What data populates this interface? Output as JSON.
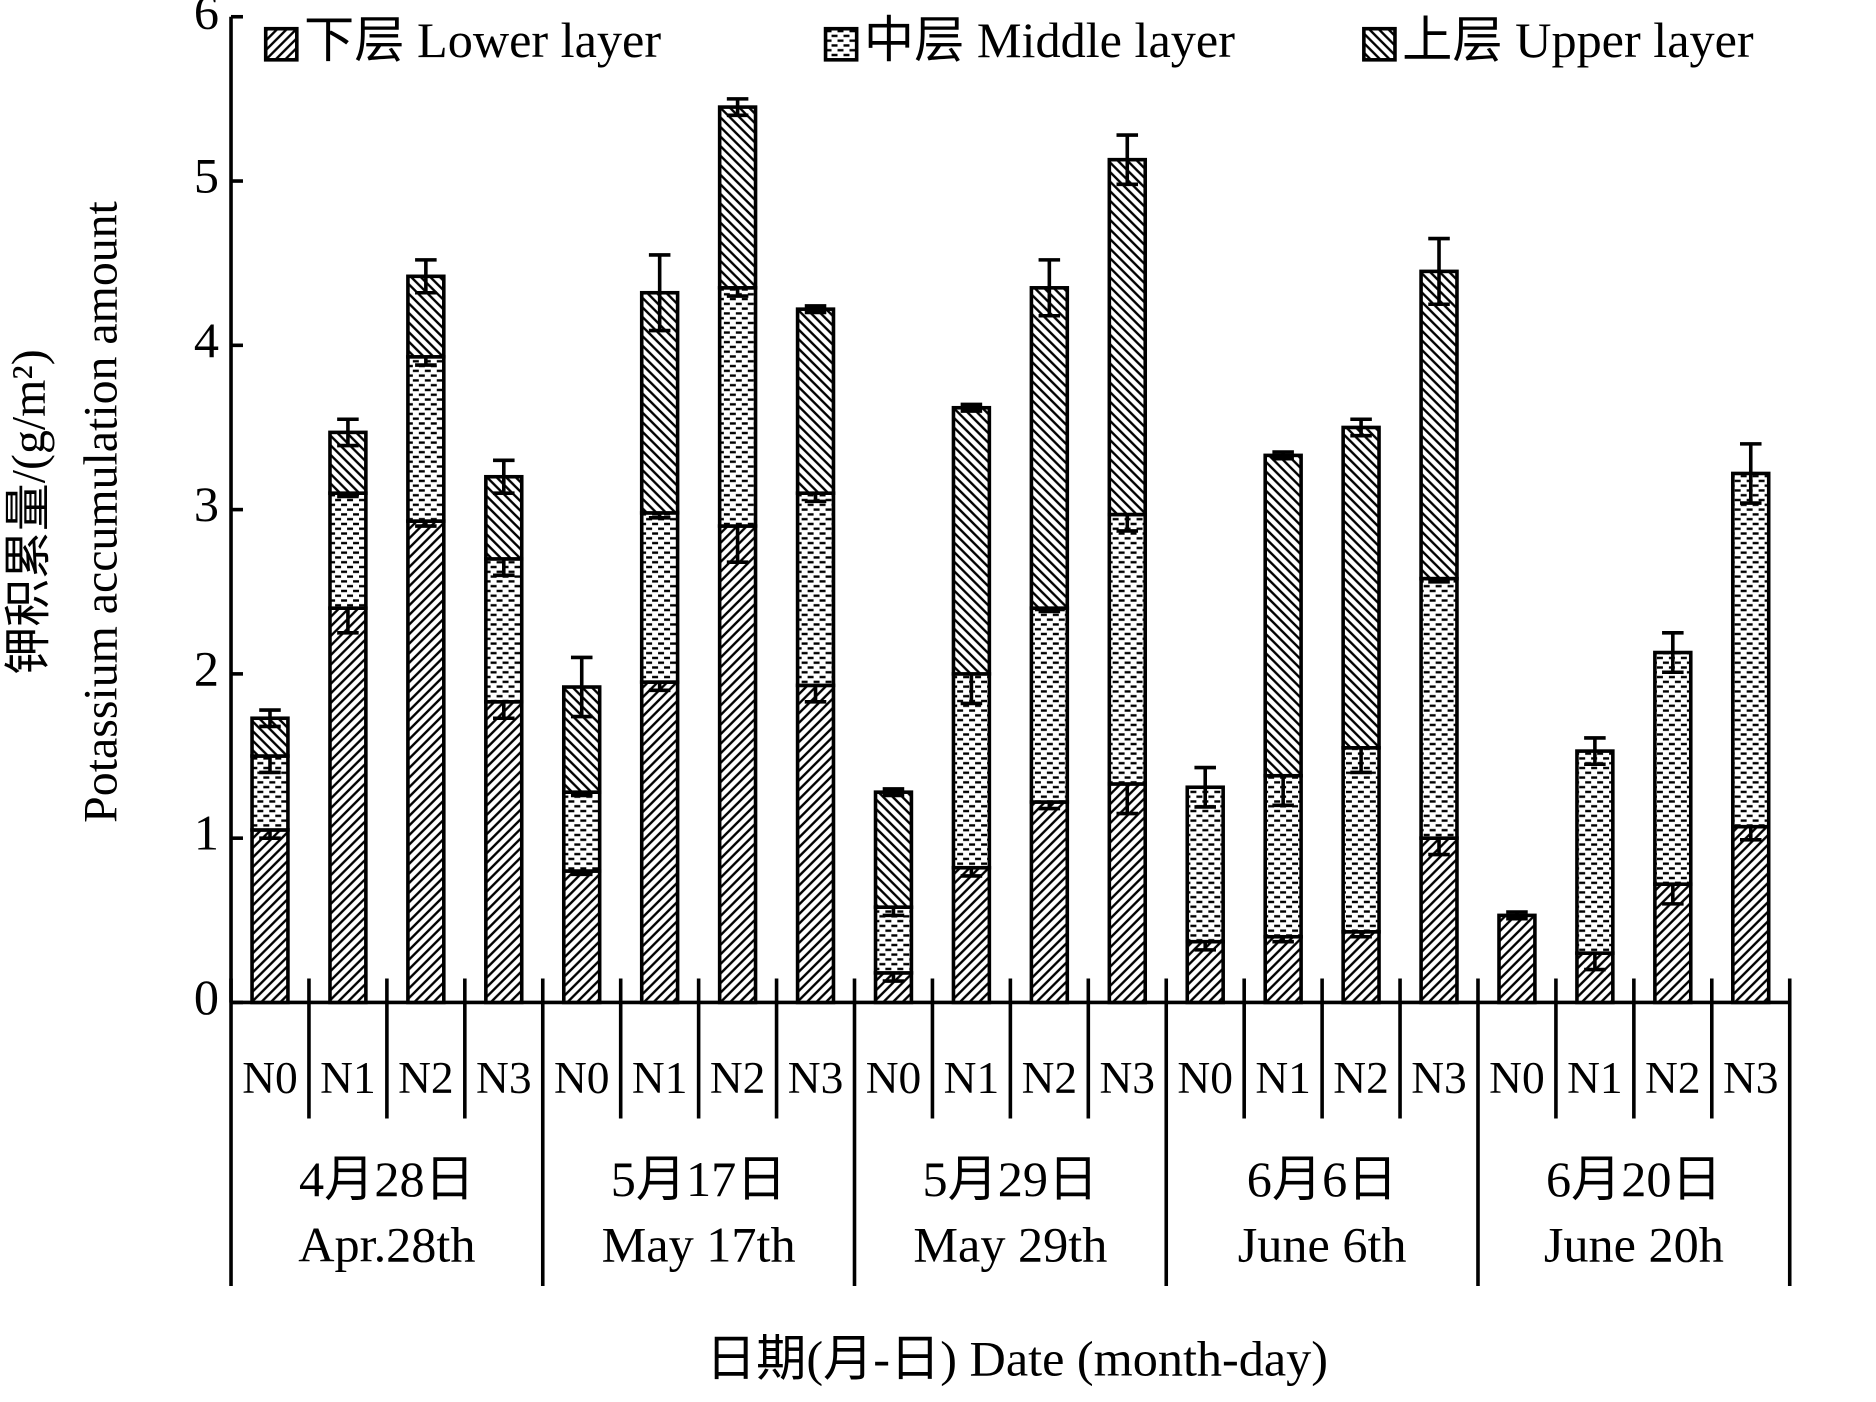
{
  "chart_data": {
    "type": "stacked_bar",
    "y_label": "钾积累量/(g/m²)",
    "y_label_en": "Potassium accumulation amount",
    "x_label": "日期(月-日)  Date (month-day)",
    "categories": [
      "N0",
      "N1",
      "N2",
      "N3",
      "N0",
      "N1",
      "N2",
      "N3",
      "N0",
      "N1",
      "N2",
      "N3",
      "N0",
      "N1",
      "N2",
      "N3",
      "N0",
      "N1",
      "N2",
      "N3"
    ],
    "groups": [
      {
        "label": "4月28日",
        "label_en": "Apr.28th"
      },
      {
        "label": "5月17日",
        "label_en": "May 17th"
      },
      {
        "label": "5月29日",
        "label_en": "May 29th"
      },
      {
        "label": "6月6日",
        "label_en": "June 6th"
      },
      {
        "label": "6月20日",
        "label_en": "June 20h"
      }
    ],
    "series": [
      {
        "name": "下层 Lower layer",
        "color": "#000000",
        "pattern": "forward-hatch",
        "values": [
          1.05,
          2.4,
          2.93,
          1.83,
          0.8,
          1.95,
          2.9,
          1.93,
          0.18,
          0.82,
          1.22,
          1.33,
          0.37,
          0.4,
          0.43,
          1.0,
          0.53,
          0.3,
          0.72,
          1.07
        ],
        "errors": [
          0.05,
          0.15,
          0.03,
          0.1,
          0.02,
          0.05,
          0.22,
          0.1,
          0.05,
          0.05,
          0.04,
          0.18,
          0.05,
          0.03,
          0.03,
          0.1,
          0.02,
          0.1,
          0.12,
          0.08
        ]
      },
      {
        "name": "中层 Middle layer",
        "color": "#000000",
        "pattern": "dots",
        "values": [
          0.45,
          0.7,
          1.0,
          0.87,
          0.48,
          1.03,
          1.45,
          1.17,
          0.4,
          1.18,
          1.18,
          1.64,
          0.94,
          0.98,
          1.12,
          1.58,
          0,
          1.23,
          1.41,
          2.15
        ],
        "errors": [
          0.1,
          0.02,
          0.05,
          0.1,
          0.02,
          0.03,
          0.05,
          0.05,
          0.05,
          0.18,
          0.02,
          0.1,
          0.12,
          0.18,
          0.15,
          0.02,
          0,
          0.08,
          0.12,
          0.18
        ]
      },
      {
        "name": "上层 Upper layer",
        "color": "#000000",
        "pattern": "back-hatch",
        "values": [
          0.23,
          0.37,
          0.49,
          0.5,
          0.64,
          1.34,
          1.1,
          1.12,
          0.7,
          1.62,
          1.95,
          2.16,
          0,
          1.95,
          1.95,
          1.87,
          0,
          0,
          0,
          0
        ],
        "errors": [
          0.05,
          0.08,
          0.1,
          0.1,
          0.18,
          0.23,
          0.05,
          0.02,
          0.02,
          0.02,
          0.17,
          0.15,
          0,
          0.02,
          0.05,
          0.2,
          0,
          0,
          0,
          0
        ]
      }
    ],
    "ylim": [
      0,
      6
    ],
    "yticks": [
      0,
      1,
      2,
      3,
      4,
      5,
      6
    ]
  }
}
